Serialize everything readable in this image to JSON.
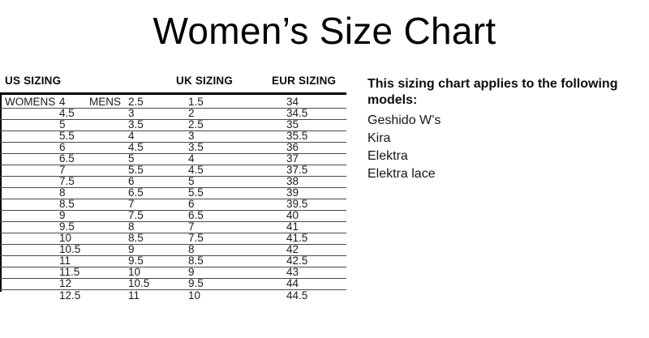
{
  "page": {
    "title": "Women’s Size Chart",
    "background": "#ffffff",
    "text_color": "#111111",
    "accent_color": "#000000"
  },
  "table": {
    "headers": {
      "us": "US SIZING",
      "uk": "UK SIZING",
      "eur": "EUR SIZING"
    },
    "row_labels": {
      "womens": "WOMENS",
      "mens": "MENS"
    },
    "columns": [
      "womens",
      "mens",
      "uk",
      "eur"
    ],
    "rows": [
      {
        "womens": "4",
        "mens": "2.5",
        "uk": "1.5",
        "eur": "34"
      },
      {
        "womens": "4.5",
        "mens": "3",
        "uk": "2",
        "eur": "34.5"
      },
      {
        "womens": "5",
        "mens": "3.5",
        "uk": "2.5",
        "eur": "35"
      },
      {
        "womens": "5.5",
        "mens": "4",
        "uk": "3",
        "eur": "35.5"
      },
      {
        "womens": "6",
        "mens": "4.5",
        "uk": "3.5",
        "eur": "36"
      },
      {
        "womens": "6.5",
        "mens": "5",
        "uk": "4",
        "eur": "37"
      },
      {
        "womens": "7",
        "mens": "5.5",
        "uk": "4.5",
        "eur": "37.5"
      },
      {
        "womens": "7.5",
        "mens": "6",
        "uk": "5",
        "eur": "38"
      },
      {
        "womens": "8",
        "mens": "6.5",
        "uk": "5.5",
        "eur": "39"
      },
      {
        "womens": "8.5",
        "mens": "7",
        "uk": "6",
        "eur": "39.5"
      },
      {
        "womens": "9",
        "mens": "7.5",
        "uk": "6.5",
        "eur": "40"
      },
      {
        "womens": "9.5",
        "mens": "8",
        "uk": "7",
        "eur": "41"
      },
      {
        "womens": "10",
        "mens": "8.5",
        "uk": "7.5",
        "eur": "41.5"
      },
      {
        "womens": "10.5",
        "mens": "9",
        "uk": "8",
        "eur": "42"
      },
      {
        "womens": "11",
        "mens": "9.5",
        "uk": "8.5",
        "eur": "42.5"
      },
      {
        "womens": "11.5",
        "mens": "10",
        "uk": "9",
        "eur": "43"
      },
      {
        "womens": "12",
        "mens": "10.5",
        "uk": "9.5",
        "eur": "44"
      },
      {
        "womens": "12.5",
        "mens": "11",
        "uk": "10",
        "eur": "44.5"
      }
    ]
  },
  "note": {
    "heading": "This sizing chart applies to the following models:",
    "models": [
      "Geshido W’s",
      "Kira",
      "Elektra",
      "Elektra lace"
    ]
  }
}
